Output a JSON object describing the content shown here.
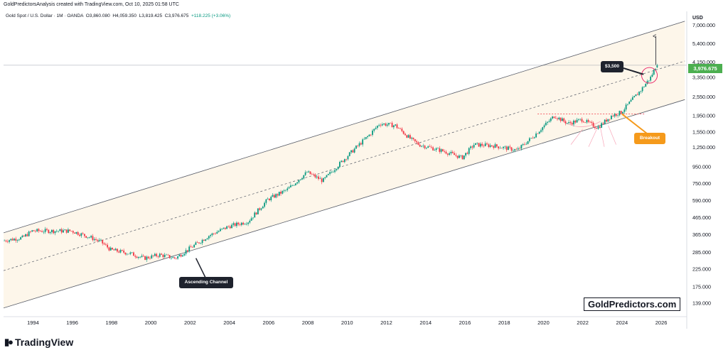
{
  "header": {
    "credit": "GoldPredictorsAnalysis created with TradingView.com, Oct 10, 2025 01:58 UTC",
    "symbol": "Gold Spot / U.S. Dollar · 1M · OANDA",
    "ohlc": {
      "open": "O3,860.080",
      "high": "H4,059.350",
      "low": "L3,819.425",
      "close": "C3,976.675",
      "change": "+118.225 (+3.06%)"
    }
  },
  "price_axis": {
    "currency": "USD",
    "last_price": "3,976.675"
  },
  "annotations": {
    "ascending_channel": "Ascending Channel",
    "breakout": "Breakout",
    "level_3500": "$3,500"
  },
  "watermark": "GoldPredictors.com",
  "branding": "TradingView",
  "colors": {
    "up": "#089981",
    "down": "#f23645",
    "channel_fill": "#fdf6ea",
    "last_price_tag": "#4caf50",
    "breakout_callout": "#f59a1b",
    "dark_callout": "#1e222d"
  },
  "chart_data": {
    "type": "candlestick",
    "scale": "log",
    "x_ticks": [
      "1994",
      "1996",
      "1998",
      "2000",
      "2002",
      "2004",
      "2006",
      "2008",
      "2010",
      "2012",
      "2014",
      "2016",
      "2018",
      "2020",
      "2022",
      "2024",
      "2026"
    ],
    "y_ticks": [
      "7,000.000",
      "5,400.000",
      "4,150.000",
      "3,350.000",
      "2,550.000",
      "1,950.000",
      "1,550.000",
      "1,250.000",
      "950.000",
      "750.000",
      "590.000",
      "465.000",
      "365.000",
      "285.000",
      "225.000",
      "175.000",
      "139.000"
    ],
    "ylim": [
      115,
      8500
    ],
    "xlim": [
      1992.5,
      2027.3
    ],
    "anchors": [
      [
        1992.5,
        335
      ],
      [
        1993.5,
        350
      ],
      [
        1994.0,
        385
      ],
      [
        1995.0,
        385
      ],
      [
        1996.0,
        385
      ],
      [
        1997.0,
        350
      ],
      [
        1997.5,
        330
      ],
      [
        1998.0,
        295
      ],
      [
        1999.0,
        280
      ],
      [
        1999.7,
        262
      ],
      [
        2000.5,
        275
      ],
      [
        2001.3,
        262
      ],
      [
        2002.0,
        300
      ],
      [
        2003.0,
        360
      ],
      [
        2004.0,
        410
      ],
      [
        2005.0,
        440
      ],
      [
        2006.0,
        600
      ],
      [
        2007.0,
        690
      ],
      [
        2008.0,
        880
      ],
      [
        2008.8,
        780
      ],
      [
        2009.5,
        950
      ],
      [
        2010.5,
        1250
      ],
      [
        2011.2,
        1500
      ],
      [
        2011.7,
        1750
      ],
      [
        2012.5,
        1700
      ],
      [
        2013.3,
        1400
      ],
      [
        2013.7,
        1300
      ],
      [
        2015.0,
        1180
      ],
      [
        2015.9,
        1080
      ],
      [
        2016.5,
        1300
      ],
      [
        2017.5,
        1280
      ],
      [
        2018.7,
        1200
      ],
      [
        2019.5,
        1450
      ],
      [
        2020.6,
        1950
      ],
      [
        2021.3,
        1750
      ],
      [
        2022.0,
        1850
      ],
      [
        2022.8,
        1650
      ],
      [
        2023.5,
        1950
      ],
      [
        2024.0,
        2050
      ],
      [
        2024.5,
        2400
      ],
      [
        2025.0,
        2800
      ],
      [
        2025.5,
        3350
      ],
      [
        2025.8,
        3976
      ]
    ],
    "last": {
      "open": 3860.08,
      "high": 4059.35,
      "low": 3819.425,
      "close": 3976.675
    },
    "channel": {
      "upper": [
        [
          1992.5,
          375
        ],
        [
          2027.2,
          7400
        ]
      ],
      "lower": [
        [
          1992.5,
          130
        ],
        [
          2027.2,
          2450
        ]
      ],
      "mid": [
        [
          1992.5,
          220
        ],
        [
          2027.2,
          4220
        ]
      ]
    },
    "resistance": {
      "price": 2000,
      "x_range": [
        2019.7,
        2025.2
      ]
    }
  }
}
